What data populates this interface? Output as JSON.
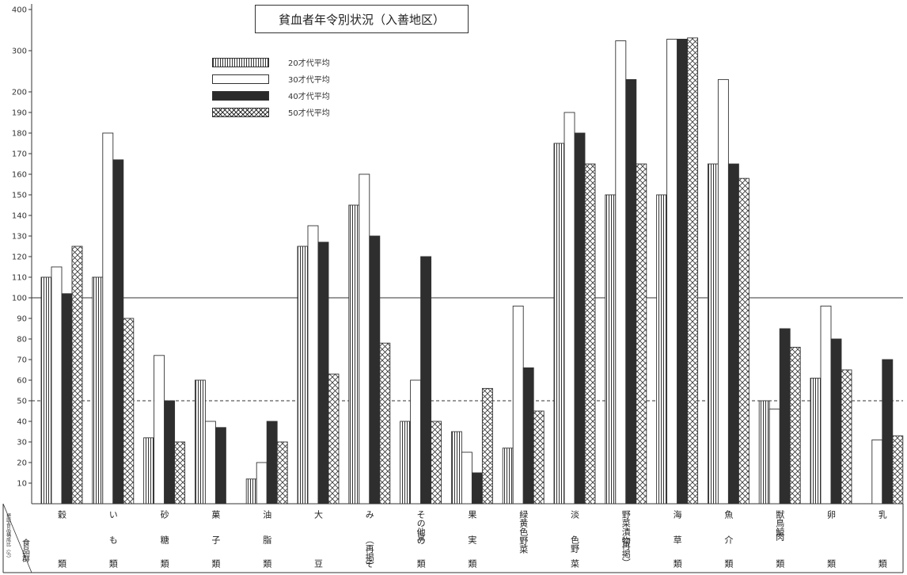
{
  "chart_data": {
    "type": "bar",
    "title": "貧血者年令別状況（入善地区）",
    "y_ticks": [
      "10",
      "20",
      "30",
      "40",
      "50",
      "60",
      "70",
      "80",
      "90",
      "100",
      "110",
      "120",
      "130",
      "140",
      "150",
      "160",
      "170",
      "180",
      "190",
      "200",
      "300",
      "400"
    ],
    "reference_lines": [
      {
        "value": 100,
        "style": "solid"
      },
      {
        "value": 50,
        "style": "dashed"
      }
    ],
    "header_left": [
      "摂取食品構成比（％）",
      "食品群"
    ],
    "categories": [
      {
        "top": "穀",
        "bottom": "類"
      },
      {
        "top": "い",
        "mid": "も",
        "bottom": "類"
      },
      {
        "top": "砂",
        "mid": "糖",
        "bottom": "類"
      },
      {
        "top": "菓",
        "mid": "子",
        "bottom": "類"
      },
      {
        "top": "油",
        "mid": "脂",
        "bottom": "類"
      },
      {
        "top": "大",
        "bottom": "豆"
      },
      {
        "top": "み",
        "mid": "（再掲）",
        "bottom": "そ"
      },
      {
        "top": "その他の",
        "mid": "豆",
        "bottom": "類"
      },
      {
        "top": "果",
        "mid": "実",
        "bottom": "類"
      },
      {
        "top": "緑黄色野菜"
      },
      {
        "top": "淡",
        "mid": "色野",
        "bottom": "菜"
      },
      {
        "top": "野菜漬物",
        "mid": "（再掲）"
      },
      {
        "top": "海",
        "mid": "草",
        "bottom": "類"
      },
      {
        "top": "魚",
        "mid": "介",
        "bottom": "類"
      },
      {
        "top": "獣鳥鯨",
        "mid": "肉",
        "bottom": "類"
      },
      {
        "top": "卵",
        "bottom": "類"
      },
      {
        "top": "乳",
        "bottom": "類"
      }
    ],
    "series": [
      {
        "name": "20才代平均",
        "pattern": "vertical-lines",
        "values": [
          110,
          110,
          32,
          60,
          12,
          125,
          145,
          40,
          35,
          27,
          175,
          150,
          150,
          165,
          50,
          61,
          0
        ]
      },
      {
        "name": "30才代平均",
        "pattern": "white",
        "values": [
          115,
          180,
          72,
          40,
          20,
          135,
          160,
          60,
          25,
          96,
          190,
          324,
          328,
          230,
          46,
          96,
          31
        ]
      },
      {
        "name": "40才代平均",
        "pattern": "black",
        "values": [
          102,
          167,
          50,
          37,
          40,
          127,
          130,
          120,
          15,
          66,
          180,
          230,
          328,
          165,
          85,
          80,
          70
        ]
      },
      {
        "name": "50才代平均",
        "pattern": "cross-hatch",
        "values": [
          125,
          90,
          30,
          0,
          30,
          63,
          78,
          40,
          56,
          45,
          165,
          165,
          331,
          158,
          76,
          65,
          33
        ]
      }
    ]
  }
}
